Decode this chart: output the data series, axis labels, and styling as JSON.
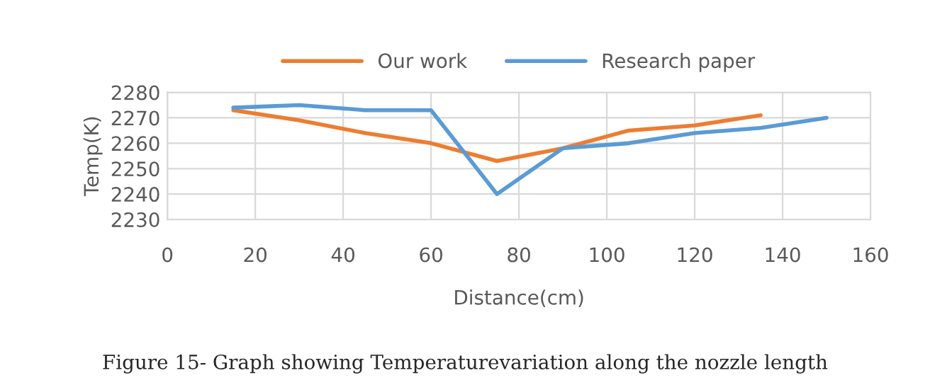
{
  "chart_data": {
    "type": "line",
    "xlabel": "Distance(cm)",
    "ylabel": "Temp(K)",
    "series": [
      {
        "name": "Our work",
        "color": "#ed7d31",
        "x": [
          15,
          30,
          45,
          60,
          75,
          90,
          105,
          120,
          135
        ],
        "values": [
          2273,
          2269,
          2264,
          2260,
          2253,
          2258,
          2265,
          2267,
          2271
        ]
      },
      {
        "name": "Research paper",
        "color": "#5b9bd5",
        "x": [
          15,
          30,
          45,
          60,
          75,
          90,
          105,
          120,
          135,
          150
        ],
        "values": [
          2274,
          2275,
          2273,
          2273,
          2240,
          2258,
          2260,
          2264,
          2266,
          2270
        ]
      }
    ],
    "xlim": [
      0,
      160
    ],
    "xticks": [
      0,
      20,
      40,
      60,
      80,
      100,
      120,
      140,
      160
    ],
    "ylim": [
      2230,
      2280
    ],
    "yticks": [
      2230,
      2240,
      2250,
      2260,
      2270,
      2280
    ],
    "grid": true,
    "legend": "top",
    "marker": "none",
    "line_style": "solid",
    "annotations": [
      "Figure 15- Graph showing Temperaturevariation along the nozzle length"
    ]
  }
}
